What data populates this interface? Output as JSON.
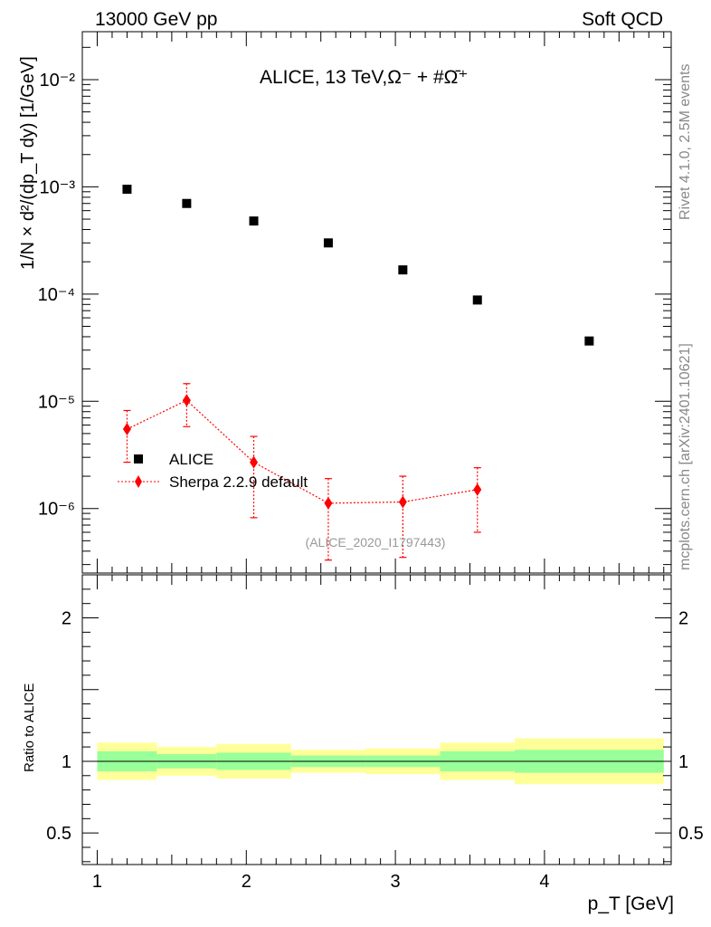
{
  "header": {
    "left": "13000 GeV pp",
    "right": "Soft QCD",
    "title": "ALICE, 13 TeV,",
    "title_particles": "Ω⁻ + #Ω̄⁺"
  },
  "side_labels": {
    "rivet": "Rivet 4.1.0,  2.5M events",
    "source": "mcplots.cern.ch [arXiv:2401.10621]"
  },
  "analysis_id": "(ALICE_2020_I1797443)",
  "chart_data": [
    {
      "type": "scatter",
      "title": "ALICE, 13 TeV, Ω⁻ + #Ω̄⁺",
      "ylabel": "1/N × d²/(dp_T dy) [1/GeV]",
      "xlabel": "p_T [GeV]",
      "yscale": "log",
      "ylim": [
        2.5e-07,
        0.028
      ],
      "xlim": [
        0.9,
        4.85
      ],
      "x_ticks": [
        "1",
        "2",
        "3",
        "4"
      ],
      "y_ticks": [
        "10⁻⁶",
        "10⁻⁵",
        "10⁻⁴",
        "10⁻³",
        "10⁻²"
      ],
      "legend_position": "lower-left",
      "series": [
        {
          "name": "ALICE",
          "color": "#000000",
          "marker": "square",
          "x": [
            1.2,
            1.6,
            2.05,
            2.55,
            3.05,
            3.55,
            4.3
          ],
          "y": [
            0.00095,
            0.0007,
            0.00048,
            0.0003,
            0.000168,
            8.8e-05,
            3.65e-05
          ]
        },
        {
          "name": "Sherpa 2.2.9 default",
          "color": "#ff0000",
          "marker": "diamond",
          "x": [
            1.2,
            1.6,
            2.05,
            2.55,
            3.05,
            3.55
          ],
          "y": [
            5.5e-06,
            1.02e-05,
            2.7e-06,
            1.12e-06,
            1.15e-06,
            1.5e-06
          ],
          "y_low": [
            2.7e-06,
            5.8e-06,
            8.2e-07,
            3.3e-07,
            3.5e-07,
            6e-07
          ],
          "y_high": [
            8.2e-06,
            1.46e-05,
            4.7e-06,
            1.9e-06,
            2e-06,
            2.4e-06
          ]
        }
      ]
    },
    {
      "type": "area",
      "ylabel": "Ratio to ALICE",
      "xlabel": "p_T [GeV]",
      "ylim": [
        0.28,
        2.3
      ],
      "xlim": [
        0.9,
        4.85
      ],
      "x_ticks": [
        "1",
        "2",
        "3",
        "4"
      ],
      "y_ticks": [
        "0.5",
        "1",
        "2"
      ],
      "reference_line": 1,
      "bands": [
        {
          "x_from": 1.0,
          "x_to": 1.4,
          "inner": [
            0.93,
            1.07
          ],
          "outer": [
            0.87,
            1.13
          ]
        },
        {
          "x_from": 1.4,
          "x_to": 1.8,
          "inner": [
            0.95,
            1.05
          ],
          "outer": [
            0.9,
            1.1
          ]
        },
        {
          "x_from": 1.8,
          "x_to": 2.3,
          "inner": [
            0.94,
            1.06
          ],
          "outer": [
            0.88,
            1.12
          ]
        },
        {
          "x_from": 2.3,
          "x_to": 2.8,
          "inner": [
            0.96,
            1.04
          ],
          "outer": [
            0.92,
            1.08
          ]
        },
        {
          "x_from": 2.8,
          "x_to": 3.3,
          "inner": [
            0.96,
            1.04
          ],
          "outer": [
            0.91,
            1.09
          ]
        },
        {
          "x_from": 3.3,
          "x_to": 3.8,
          "inner": [
            0.93,
            1.07
          ],
          "outer": [
            0.87,
            1.13
          ]
        },
        {
          "x_from": 3.8,
          "x_to": 4.8,
          "inner": [
            0.92,
            1.08
          ],
          "outer": [
            0.84,
            1.16
          ]
        }
      ],
      "band_colors": {
        "inner": "#99ff99",
        "outer": "#ffff99"
      }
    }
  ]
}
